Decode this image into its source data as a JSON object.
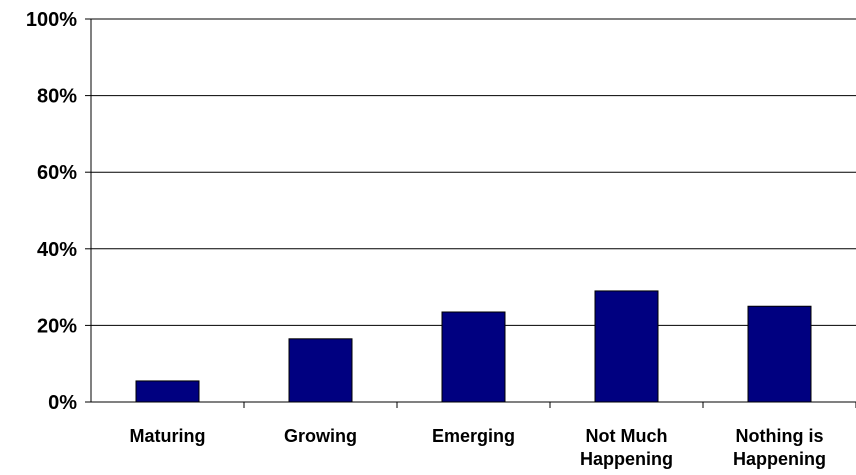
{
  "chart_data": {
    "type": "bar",
    "categories": [
      "Maturing",
      "Growing",
      "Emerging",
      "Not Much Happening",
      "Nothing is Happening"
    ],
    "category_lines": [
      [
        "Maturing"
      ],
      [
        "Growing"
      ],
      [
        "Emerging"
      ],
      [
        "Not Much",
        "Happening"
      ],
      [
        "Nothing is",
        "Happening"
      ]
    ],
    "series": [
      {
        "values": [
          5.5,
          16.5,
          23.5,
          29,
          25
        ]
      }
    ],
    "ylim": [
      0,
      100
    ],
    "yticks": [
      0,
      20,
      40,
      60,
      80,
      100
    ],
    "ytick_labels": [
      "0%",
      "20%",
      "40%",
      "60%",
      "80%",
      "100%"
    ],
    "grid": true,
    "bar_color": "#000080"
  }
}
